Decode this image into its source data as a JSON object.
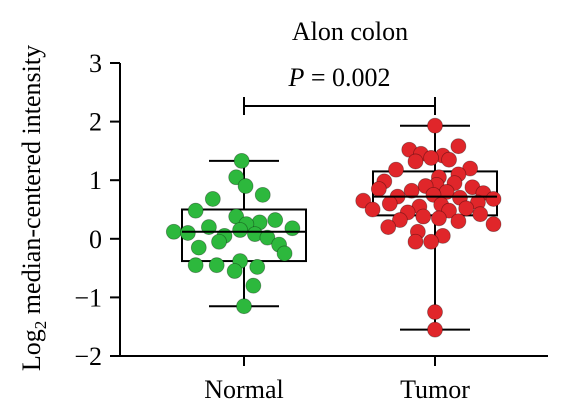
{
  "chart_data": {
    "type": "box",
    "title": "Alon colon",
    "ylabel": {
      "prefix": "Log",
      "subscript": "2",
      "suffix": " median-centered intensity"
    },
    "ylim": [
      -2,
      3
    ],
    "yticks": [
      3,
      2,
      1,
      0,
      -1,
      -2
    ],
    "ytick_labels": [
      "3",
      "2",
      "1",
      "0",
      "−1",
      "−2"
    ],
    "categories": [
      "Normal",
      "Tumor"
    ],
    "annotation": {
      "italic": "P",
      "text": " = 0.002"
    },
    "series": [
      {
        "name": "Normal",
        "color": "#2db83d",
        "box": {
          "min": -1.15,
          "q1": -0.38,
          "median": 0.12,
          "q3": 0.5,
          "max": 1.33
        },
        "points": [
          [
            1.33,
            -0.03
          ],
          [
            1.05,
            -0.1
          ],
          [
            0.9,
            0.02
          ],
          [
            0.75,
            0.24
          ],
          [
            0.68,
            -0.4
          ],
          [
            0.48,
            -0.62
          ],
          [
            0.38,
            -0.1
          ],
          [
            0.32,
            0.4
          ],
          [
            0.28,
            0.2
          ],
          [
            0.25,
            0.03
          ],
          [
            0.2,
            -0.45
          ],
          [
            0.18,
            0.62
          ],
          [
            0.15,
            -0.05
          ],
          [
            0.12,
            -0.9
          ],
          [
            0.1,
            -0.72
          ],
          [
            0.08,
            0.14
          ],
          [
            0.05,
            -0.25
          ],
          [
            0.02,
            0.3
          ],
          [
            -0.05,
            -0.32
          ],
          [
            -0.1,
            0.45
          ],
          [
            -0.15,
            -0.58
          ],
          [
            -0.25,
            0.52
          ],
          [
            -0.38,
            -0.05
          ],
          [
            -0.45,
            -0.62
          ],
          [
            -0.45,
            -0.35
          ],
          [
            -0.48,
            0.17
          ],
          [
            -0.55,
            -0.12
          ],
          [
            -0.8,
            0.12
          ],
          [
            -1.15,
            0.0
          ]
        ]
      },
      {
        "name": "Tumor",
        "color": "#e0262a",
        "box": {
          "min": -1.55,
          "q1": 0.4,
          "median": 0.72,
          "q3": 1.15,
          "max": 1.93
        },
        "points": [
          [
            1.93,
            0.0
          ],
          [
            1.58,
            0.3
          ],
          [
            1.52,
            -0.33
          ],
          [
            1.45,
            -0.18
          ],
          [
            1.42,
            0.1
          ],
          [
            1.38,
            -0.05
          ],
          [
            1.35,
            0.18
          ],
          [
            1.32,
            -0.25
          ],
          [
            1.2,
            0.45
          ],
          [
            1.18,
            -0.5
          ],
          [
            1.1,
            0.3
          ],
          [
            1.05,
            0.05
          ],
          [
            0.98,
            -0.65
          ],
          [
            0.95,
            0.25
          ],
          [
            0.92,
            0.02
          ],
          [
            0.9,
            -0.12
          ],
          [
            0.88,
            0.48
          ],
          [
            0.85,
            -0.72
          ],
          [
            0.82,
            -0.3
          ],
          [
            0.8,
            0.15
          ],
          [
            0.78,
            0.62
          ],
          [
            0.75,
            -0.02
          ],
          [
            0.72,
            -0.48
          ],
          [
            0.7,
            0.32
          ],
          [
            0.68,
            0.75
          ],
          [
            0.65,
            -0.92
          ],
          [
            0.62,
            0.55
          ],
          [
            0.6,
            -0.58
          ],
          [
            0.58,
            0.08
          ],
          [
            0.55,
            -0.2
          ],
          [
            0.52,
            0.4
          ],
          [
            0.5,
            -0.8
          ],
          [
            0.48,
            0.18
          ],
          [
            0.45,
            -0.35
          ],
          [
            0.42,
            0.58
          ],
          [
            0.38,
            -0.15
          ],
          [
            0.35,
            0.05
          ],
          [
            0.32,
            -0.45
          ],
          [
            0.3,
            0.3
          ],
          [
            0.25,
            0.75
          ],
          [
            0.2,
            -0.6
          ],
          [
            0.12,
            -0.22
          ],
          [
            0.05,
            0.1
          ],
          [
            -0.05,
            -0.05
          ],
          [
            -0.05,
            -0.25
          ],
          [
            -1.25,
            0.0
          ],
          [
            -1.55,
            0.0
          ]
        ]
      }
    ]
  }
}
